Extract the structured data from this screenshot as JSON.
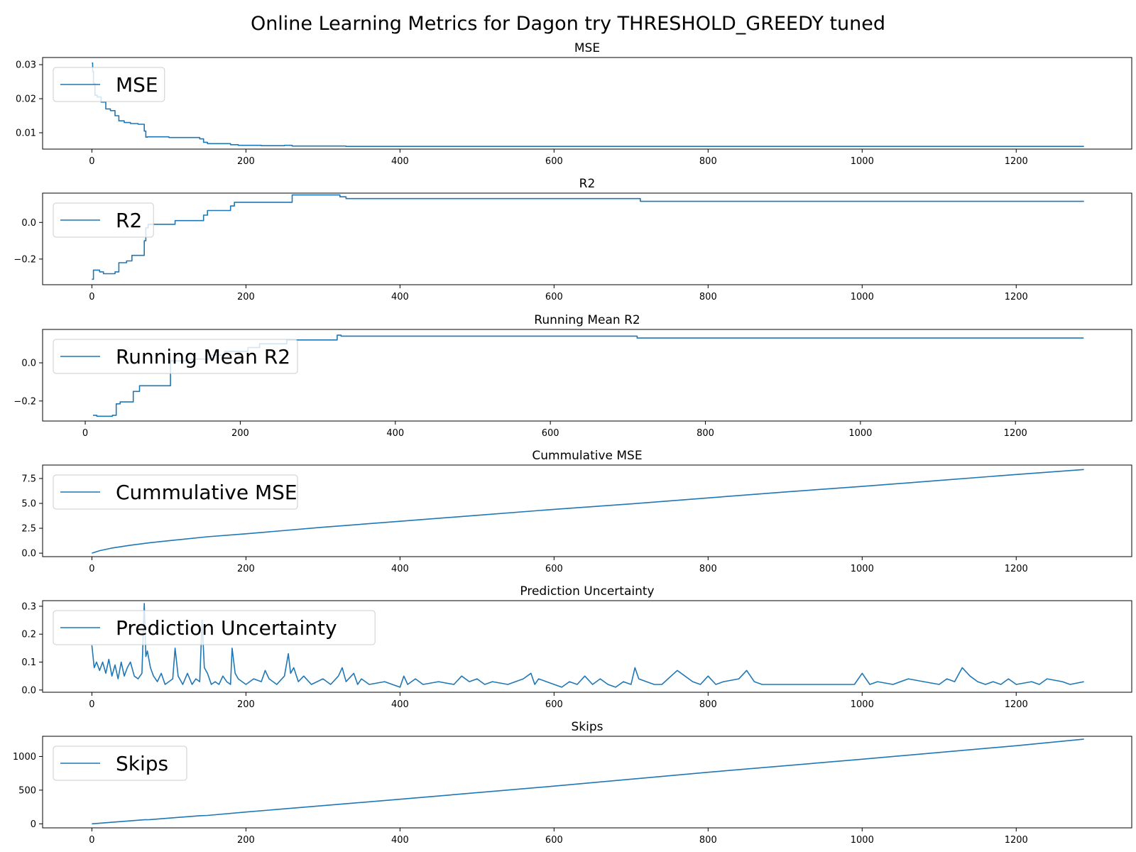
{
  "figure": {
    "title": "Online Learning Metrics for Dagon try THRESHOLD_GREEDY tuned",
    "line_color": "#1f77b4"
  },
  "chart_data": [
    {
      "type": "line",
      "title": "MSE",
      "xlim": [
        -64,
        1350
      ],
      "ylim": [
        0.0052,
        0.0321
      ],
      "xticks": [
        0,
        200,
        400,
        600,
        800,
        1000,
        1200
      ],
      "yticks": [
        0.01,
        0.02,
        0.03
      ],
      "ytick_labels": [
        "0.01",
        "0.02",
        "0.03"
      ],
      "legend": "upper left",
      "series": [
        {
          "name": "MSE",
          "step": true,
          "x": [
            0,
            1,
            2,
            4,
            7,
            12,
            18,
            24,
            30,
            35,
            42,
            50,
            60,
            68,
            70,
            72,
            100,
            140,
            145,
            150,
            180,
            190,
            220,
            250,
            260,
            300,
            330,
            400,
            600,
            800,
            1000,
            1200,
            1288
          ],
          "y": [
            0.0305,
            0.028,
            0.0245,
            0.021,
            0.0205,
            0.019,
            0.017,
            0.0165,
            0.015,
            0.0135,
            0.013,
            0.0127,
            0.0125,
            0.0105,
            0.0087,
            0.0088,
            0.0086,
            0.0082,
            0.0072,
            0.0068,
            0.0065,
            0.0063,
            0.0062,
            0.0063,
            0.0061,
            0.0061,
            0.006,
            0.006,
            0.006,
            0.006,
            0.006,
            0.006,
            0.006
          ]
        }
      ]
    },
    {
      "type": "line",
      "title": "R2",
      "xlim": [
        -64,
        1350
      ],
      "ylim": [
        -0.34,
        0.16
      ],
      "xticks": [
        0,
        200,
        400,
        600,
        800,
        1000,
        1200
      ],
      "yticks": [
        -0.2,
        0.0
      ],
      "ytick_labels": [
        "−0.2",
        "0.0"
      ],
      "legend": "upper left",
      "series": [
        {
          "name": "R2",
          "step": true,
          "x": [
            0,
            2,
            10,
            15,
            30,
            35,
            45,
            52,
            68,
            70,
            73,
            78,
            108,
            140,
            145,
            150,
            180,
            185,
            225,
            260,
            322,
            330,
            710,
            712,
            1288
          ],
          "y": [
            -0.31,
            -0.26,
            -0.27,
            -0.28,
            -0.27,
            -0.22,
            -0.21,
            -0.18,
            -0.1,
            -0.03,
            -0.01,
            -0.01,
            0.01,
            0.01,
            0.04,
            0.065,
            0.09,
            0.11,
            0.11,
            0.15,
            0.14,
            0.13,
            0.13,
            0.115,
            0.115
          ]
        }
      ]
    },
    {
      "type": "line",
      "title": "Running Mean R2",
      "xlim": [
        -55,
        1350
      ],
      "ylim": [
        -0.305,
        0.175
      ],
      "xticks": [
        0,
        200,
        400,
        600,
        800,
        1000,
        1200
      ],
      "yticks": [
        -0.2,
        0.0
      ],
      "ytick_labels": [
        "−0.2",
        "0.0"
      ],
      "legend": "upper left",
      "series": [
        {
          "name": "Running Mean R2",
          "step": true,
          "x": [
            10,
            15,
            22,
            35,
            40,
            45,
            62,
            70,
            108,
            110,
            130,
            160,
            180,
            210,
            225,
            260,
            320,
            325,
            330,
            710,
            712,
            1288
          ],
          "y": [
            -0.275,
            -0.28,
            -0.28,
            -0.275,
            -0.215,
            -0.205,
            -0.15,
            -0.12,
            -0.12,
            0.01,
            0.02,
            0.04,
            0.06,
            0.08,
            0.1,
            0.12,
            0.12,
            0.145,
            0.14,
            0.14,
            0.13,
            0.13
          ]
        }
      ]
    },
    {
      "type": "line",
      "title": "Cummulative MSE",
      "xlim": [
        -64,
        1350
      ],
      "ylim": [
        -0.35,
        8.85
      ],
      "xticks": [
        0,
        200,
        400,
        600,
        800,
        1000,
        1200
      ],
      "yticks": [
        0.0,
        2.5,
        5.0,
        7.5
      ],
      "ytick_labels": [
        "0.0",
        "2.5",
        "5.0",
        "7.5"
      ],
      "legend": "upper left",
      "series": [
        {
          "name": "Cummulative MSE",
          "x": [
            0,
            10,
            25,
            50,
            75,
            100,
            150,
            200,
            300,
            400,
            500,
            600,
            700,
            800,
            900,
            1000,
            1100,
            1200,
            1288
          ],
          "y": [
            0.0,
            0.25,
            0.5,
            0.8,
            1.05,
            1.25,
            1.65,
            1.95,
            2.6,
            3.2,
            3.8,
            4.4,
            4.95,
            5.55,
            6.15,
            6.7,
            7.3,
            7.9,
            8.4
          ]
        }
      ]
    },
    {
      "type": "line",
      "title": "Prediction Uncertainty",
      "xlim": [
        -64,
        1350
      ],
      "ylim": [
        -0.008,
        0.32
      ],
      "xticks": [
        0,
        200,
        400,
        600,
        800,
        1000,
        1200
      ],
      "yticks": [
        0.0,
        0.1,
        0.2,
        0.3
      ],
      "ytick_labels": [
        "0.0",
        "0.1",
        "0.2",
        "0.3"
      ],
      "legend": "upper left",
      "series": [
        {
          "name": "Prediction Uncertainty",
          "x": [
            0,
            3,
            6,
            10,
            14,
            18,
            22,
            26,
            30,
            34,
            38,
            42,
            46,
            50,
            55,
            60,
            65,
            68,
            70,
            72,
            76,
            80,
            85,
            90,
            95,
            100,
            105,
            108,
            112,
            118,
            124,
            130,
            135,
            140,
            143,
            146,
            150,
            155,
            160,
            165,
            170,
            175,
            180,
            182,
            186,
            190,
            195,
            200,
            210,
            220,
            225,
            230,
            240,
            250,
            255,
            258,
            262,
            268,
            275,
            285,
            300,
            310,
            320,
            325,
            330,
            340,
            345,
            350,
            360,
            380,
            400,
            405,
            410,
            420,
            430,
            450,
            470,
            480,
            490,
            500,
            510,
            520,
            540,
            560,
            570,
            575,
            580,
            600,
            610,
            620,
            630,
            640,
            650,
            660,
            665,
            670,
            680,
            690,
            700,
            705,
            710,
            720,
            730,
            740,
            760,
            780,
            790,
            800,
            810,
            820,
            840,
            850,
            860,
            870,
            880,
            900,
            950,
            980,
            990,
            1000,
            1010,
            1020,
            1040,
            1060,
            1080,
            1100,
            1110,
            1120,
            1130,
            1140,
            1150,
            1160,
            1170,
            1180,
            1190,
            1200,
            1220,
            1230,
            1240,
            1260,
            1270,
            1288
          ],
          "y": [
            0.16,
            0.08,
            0.1,
            0.07,
            0.1,
            0.06,
            0.11,
            0.05,
            0.09,
            0.04,
            0.1,
            0.05,
            0.08,
            0.1,
            0.05,
            0.04,
            0.06,
            0.31,
            0.12,
            0.14,
            0.08,
            0.05,
            0.03,
            0.06,
            0.02,
            0.03,
            0.04,
            0.15,
            0.05,
            0.02,
            0.06,
            0.02,
            0.04,
            0.03,
            0.25,
            0.08,
            0.06,
            0.02,
            0.03,
            0.02,
            0.05,
            0.03,
            0.02,
            0.15,
            0.06,
            0.04,
            0.03,
            0.02,
            0.04,
            0.03,
            0.07,
            0.04,
            0.02,
            0.05,
            0.13,
            0.06,
            0.08,
            0.03,
            0.05,
            0.02,
            0.04,
            0.02,
            0.05,
            0.08,
            0.03,
            0.06,
            0.02,
            0.04,
            0.02,
            0.03,
            0.01,
            0.05,
            0.02,
            0.04,
            0.02,
            0.03,
            0.02,
            0.05,
            0.03,
            0.04,
            0.02,
            0.03,
            0.02,
            0.04,
            0.06,
            0.02,
            0.04,
            0.02,
            0.01,
            0.03,
            0.02,
            0.05,
            0.02,
            0.04,
            0.03,
            0.02,
            0.01,
            0.03,
            0.02,
            0.08,
            0.04,
            0.03,
            0.02,
            0.02,
            0.07,
            0.03,
            0.02,
            0.05,
            0.02,
            0.03,
            0.04,
            0.07,
            0.03,
            0.02,
            0.02,
            0.02,
            0.02,
            0.02,
            0.02,
            0.06,
            0.02,
            0.03,
            0.02,
            0.04,
            0.03,
            0.02,
            0.04,
            0.03,
            0.08,
            0.05,
            0.03,
            0.02,
            0.03,
            0.02,
            0.04,
            0.02,
            0.03,
            0.02,
            0.04,
            0.03,
            0.02,
            0.03
          ]
        }
      ]
    },
    {
      "type": "line",
      "title": "Skips",
      "xlim": [
        -64,
        1350
      ],
      "ylim": [
        -60,
        1300
      ],
      "xticks": [
        0,
        200,
        400,
        600,
        800,
        1000,
        1200
      ],
      "yticks": [
        0,
        500,
        1000
      ],
      "ytick_labels": [
        "0",
        "500",
        "1000"
      ],
      "legend": "upper left",
      "series": [
        {
          "name": "Skips",
          "x": [
            0,
            68,
            75,
            140,
            150,
            200,
            400,
            600,
            800,
            1000,
            1200,
            1288
          ],
          "y": [
            0,
            60,
            62,
            120,
            125,
            175,
            365,
            560,
            765,
            960,
            1160,
            1258
          ]
        }
      ]
    }
  ]
}
